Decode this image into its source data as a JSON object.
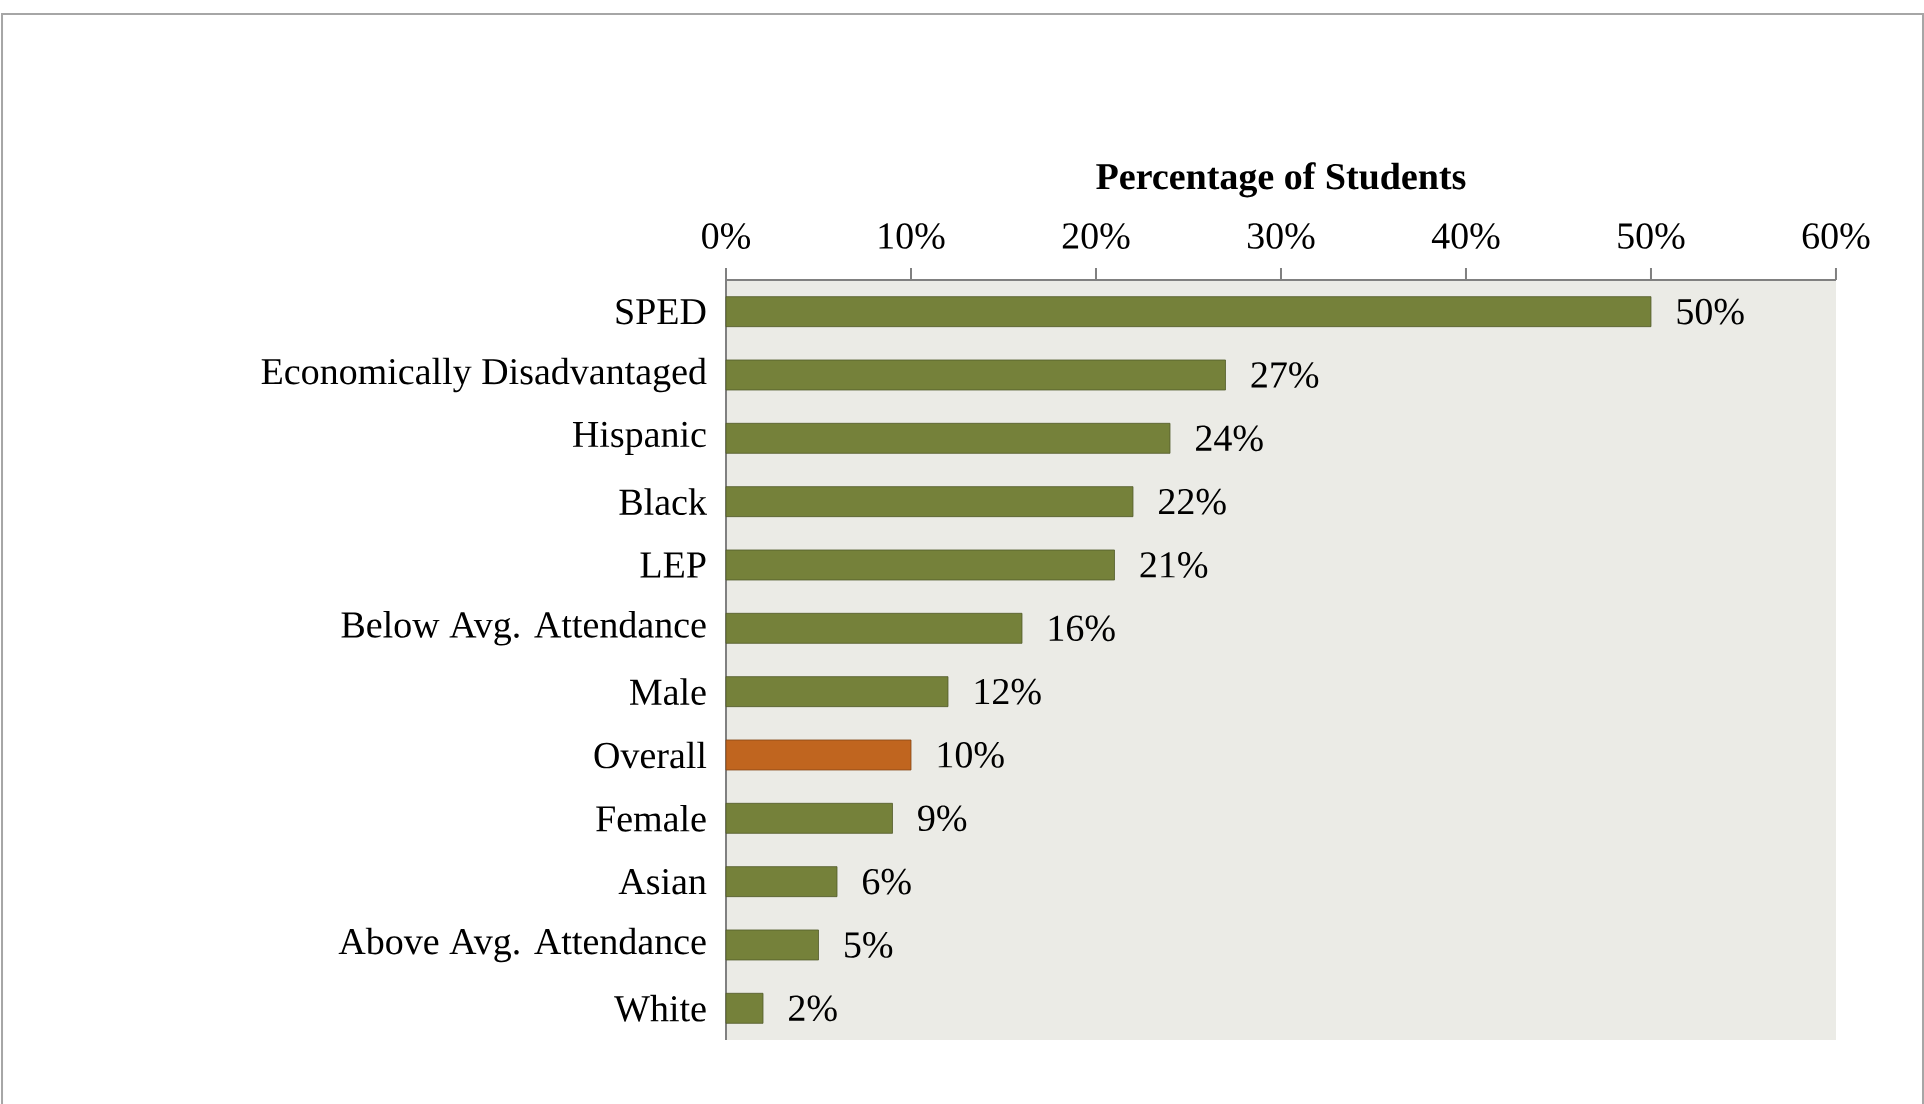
{
  "chart_data": {
    "type": "bar",
    "orientation": "horizontal",
    "xlabel": "Percentage of Students",
    "categories": [
      "SPED",
      "Economically Disadvantaged",
      "Hispanic",
      "Black",
      "LEP",
      "Below Avg. Attendance",
      "Male",
      "Overall",
      "Female",
      "Asian",
      "Above Avg. Attendance",
      "White"
    ],
    "values": [
      50,
      27,
      24,
      22,
      21,
      16,
      12,
      10,
      9,
      6,
      5,
      2
    ],
    "value_labels": [
      "50%",
      "27%",
      "24%",
      "22%",
      "21%",
      "16%",
      "12%",
      "10%",
      "9%",
      "6%",
      "5%",
      "2%"
    ],
    "colors": [
      "#75813a",
      "#75813a",
      "#75813a",
      "#75813a",
      "#75813a",
      "#75813a",
      "#75813a",
      "#c0651f",
      "#75813a",
      "#75813a",
      "#75813a",
      "#75813a"
    ],
    "xlim": [
      0,
      60
    ],
    "xticks": [
      {
        "value": 0,
        "label": "0%"
      },
      {
        "value": 10,
        "label": "10%"
      },
      {
        "value": 20,
        "label": "20%"
      },
      {
        "value": 30,
        "label": "30%"
      },
      {
        "value": 40,
        "label": "40%"
      },
      {
        "value": 50,
        "label": "50%"
      },
      {
        "value": 60,
        "label": "60%"
      }
    ],
    "grid": false
  }
}
